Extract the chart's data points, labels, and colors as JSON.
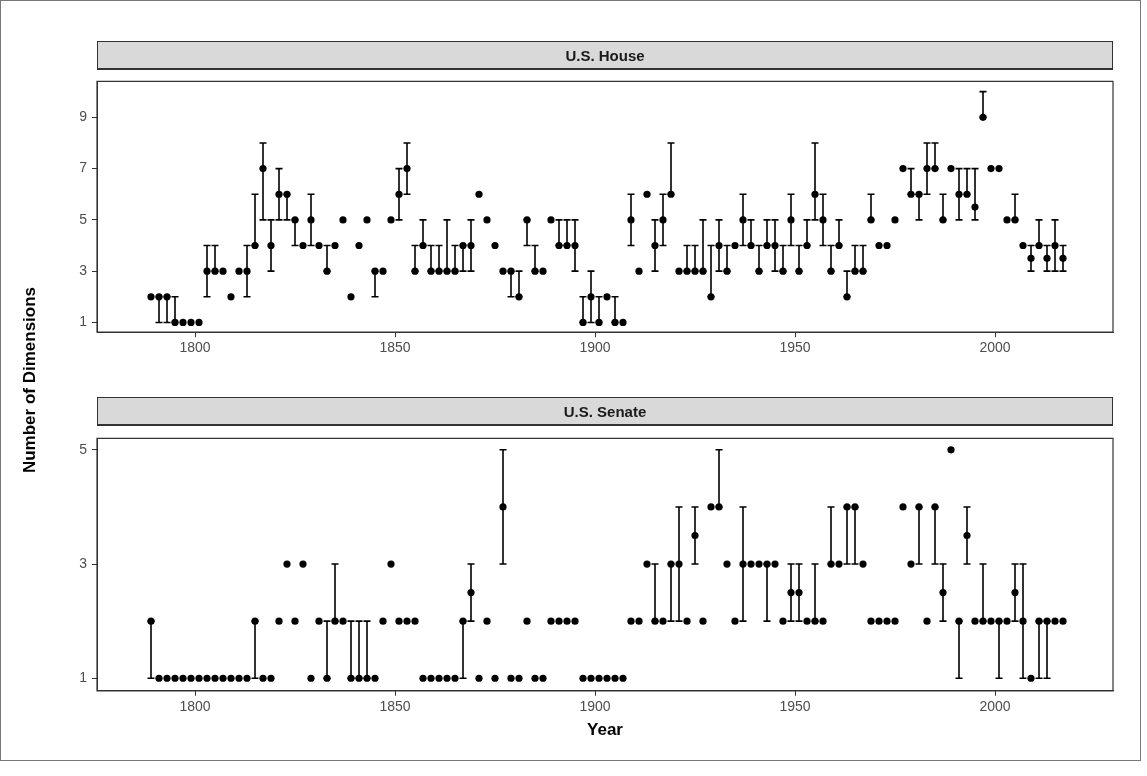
{
  "chart_data": [
    {
      "type": "scatter",
      "title": "U.S. House",
      "ylabel": "Number of Dimensions",
      "marker": "circle",
      "color": "#000000",
      "x": [
        1789,
        1791,
        1793,
        1795,
        1797,
        1799,
        1801,
        1803,
        1805,
        1807,
        1809,
        1811,
        1813,
        1815,
        1817,
        1819,
        1821,
        1823,
        1825,
        1827,
        1829,
        1831,
        1833,
        1835,
        1837,
        1839,
        1841,
        1843,
        1845,
        1847,
        1849,
        1851,
        1853,
        1855,
        1857,
        1859,
        1861,
        1863,
        1865,
        1867,
        1869,
        1871,
        1873,
        1875,
        1877,
        1879,
        1881,
        1883,
        1885,
        1887,
        1889,
        1891,
        1893,
        1895,
        1897,
        1899,
        1901,
        1903,
        1905,
        1907,
        1909,
        1911,
        1913,
        1915,
        1917,
        1919,
        1921,
        1923,
        1925,
        1927,
        1929,
        1931,
        1933,
        1935,
        1937,
        1939,
        1941,
        1943,
        1945,
        1947,
        1949,
        1951,
        1953,
        1955,
        1957,
        1959,
        1961,
        1963,
        1965,
        1967,
        1969,
        1971,
        1973,
        1975,
        1977,
        1979,
        1981,
        1983,
        1985,
        1987,
        1989,
        1991,
        1993,
        1995,
        1997,
        1999,
        2001,
        2003,
        2005,
        2007,
        2009,
        2011,
        2013,
        2015,
        2017
      ],
      "values": [
        2,
        2,
        2,
        1,
        1,
        1,
        1,
        3,
        3,
        3,
        2,
        3,
        3,
        4,
        7,
        4,
        6,
        6,
        5,
        4,
        5,
        4,
        3,
        4,
        5,
        2,
        4,
        5,
        3,
        3,
        5,
        6,
        7,
        3,
        4,
        3,
        3,
        3,
        3,
        4,
        4,
        6,
        5,
        4,
        3,
        3,
        2,
        5,
        3,
        3,
        5,
        4,
        4,
        4,
        1,
        2,
        1,
        2,
        1,
        1,
        5,
        3,
        6,
        4,
        5,
        6,
        3,
        3,
        3,
        3,
        2,
        4,
        3,
        4,
        5,
        4,
        3,
        4,
        4,
        3,
        5,
        3,
        4,
        6,
        5,
        3,
        4,
        2,
        3,
        3,
        5,
        4,
        4,
        5,
        7,
        6,
        6,
        7,
        7,
        5,
        7,
        6,
        6,
        5.5,
        9,
        7,
        7,
        5,
        5,
        4,
        3.5,
        4,
        3.5,
        4,
        3.5
      ],
      "errors": [
        null,
        [
          1,
          2
        ],
        [
          1,
          2
        ],
        [
          1,
          2
        ],
        null,
        null,
        null,
        [
          2,
          4
        ],
        [
          3,
          4
        ],
        null,
        null,
        null,
        [
          2,
          4
        ],
        [
          4,
          6
        ],
        [
          5,
          8
        ],
        [
          3,
          5
        ],
        [
          5,
          7
        ],
        [
          5,
          6
        ],
        [
          4,
          5
        ],
        null,
        [
          4,
          6
        ],
        null,
        [
          3,
          4
        ],
        null,
        null,
        null,
        null,
        null,
        [
          2,
          3
        ],
        null,
        null,
        [
          5,
          7
        ],
        [
          6,
          8
        ],
        [
          3,
          4
        ],
        [
          4,
          5
        ],
        [
          3,
          4
        ],
        [
          3,
          4
        ],
        [
          3,
          5
        ],
        [
          3,
          4
        ],
        [
          3,
          4
        ],
        [
          3,
          5
        ],
        null,
        null,
        null,
        null,
        [
          2,
          3
        ],
        [
          2,
          3
        ],
        [
          4,
          5
        ],
        [
          3,
          4
        ],
        null,
        null,
        [
          4,
          5
        ],
        [
          4,
          5
        ],
        [
          3,
          5
        ],
        [
          1,
          2
        ],
        [
          1,
          3
        ],
        [
          1,
          2
        ],
        null,
        [
          1,
          2
        ],
        null,
        [
          4,
          6
        ],
        null,
        null,
        [
          3,
          5
        ],
        [
          4,
          6
        ],
        [
          6,
          8
        ],
        null,
        [
          3,
          4
        ],
        [
          3,
          4
        ],
        [
          3,
          5
        ],
        [
          2,
          4
        ],
        [
          3,
          5
        ],
        [
          3,
          4
        ],
        null,
        [
          4,
          6
        ],
        [
          4,
          5
        ],
        [
          3,
          4
        ],
        [
          4,
          5
        ],
        [
          3,
          5
        ],
        [
          3,
          4
        ],
        [
          4,
          6
        ],
        [
          3,
          4
        ],
        [
          4,
          5
        ],
        [
          5,
          8
        ],
        [
          4,
          6
        ],
        [
          3,
          4
        ],
        [
          4,
          5
        ],
        [
          2,
          3
        ],
        [
          3,
          4
        ],
        [
          3,
          4
        ],
        [
          5,
          6
        ],
        null,
        null,
        null,
        null,
        [
          6,
          7
        ],
        [
          5,
          6
        ],
        [
          6,
          8
        ],
        [
          7,
          8
        ],
        [
          5,
          6
        ],
        null,
        [
          5,
          7
        ],
        [
          6,
          7
        ],
        [
          5,
          7
        ],
        [
          9,
          10
        ],
        null,
        null,
        null,
        [
          5,
          6
        ],
        null,
        [
          3,
          4
        ],
        [
          4,
          5
        ],
        [
          3,
          4
        ],
        [
          3,
          5
        ],
        [
          3,
          4
        ]
      ],
      "xlim": [
        1775.5,
        2029.5
      ],
      "xticks": [
        1800,
        1850,
        1900,
        1950,
        2000
      ],
      "ylim": [
        0.62,
        10.4
      ],
      "yticks": [
        1,
        3,
        5,
        7,
        9
      ]
    },
    {
      "type": "scatter",
      "title": "U.S. Senate",
      "xlabel": "Year",
      "marker": "circle",
      "color": "#000000",
      "x": [
        1789,
        1791,
        1793,
        1795,
        1797,
        1799,
        1801,
        1803,
        1805,
        1807,
        1809,
        1811,
        1813,
        1815,
        1817,
        1819,
        1821,
        1823,
        1825,
        1827,
        1829,
        1831,
        1833,
        1835,
        1837,
        1839,
        1841,
        1843,
        1845,
        1847,
        1849,
        1851,
        1853,
        1855,
        1857,
        1859,
        1861,
        1863,
        1865,
        1867,
        1869,
        1871,
        1873,
        1875,
        1877,
        1879,
        1881,
        1883,
        1885,
        1887,
        1889,
        1891,
        1893,
        1895,
        1897,
        1899,
        1901,
        1903,
        1905,
        1907,
        1909,
        1911,
        1913,
        1915,
        1917,
        1919,
        1921,
        1923,
        1925,
        1927,
        1929,
        1931,
        1933,
        1935,
        1937,
        1939,
        1941,
        1943,
        1945,
        1947,
        1949,
        1951,
        1953,
        1955,
        1957,
        1959,
        1961,
        1963,
        1965,
        1967,
        1969,
        1971,
        1973,
        1975,
        1977,
        1979,
        1981,
        1983,
        1985,
        1987,
        1989,
        1991,
        1993,
        1995,
        1997,
        1999,
        2001,
        2003,
        2005,
        2007,
        2009,
        2011,
        2013,
        2015,
        2017
      ],
      "values": [
        2,
        1,
        1,
        1,
        1,
        1,
        1,
        1,
        1,
        1,
        1,
        1,
        1,
        2,
        1,
        1,
        2,
        3,
        2,
        3,
        1,
        2,
        1,
        2,
        2,
        1,
        1,
        1,
        1,
        2,
        3,
        2,
        2,
        2,
        1,
        1,
        1,
        1,
        1,
        2,
        2.5,
        1,
        2,
        1,
        4,
        1,
        1,
        2,
        1,
        1,
        2,
        2,
        2,
        2,
        1,
        1,
        1,
        1,
        1,
        1,
        2,
        2,
        3,
        2,
        2,
        3,
        3,
        2,
        3.5,
        2,
        4,
        4,
        3,
        2,
        3,
        3,
        3,
        3,
        3,
        2,
        2.5,
        2.5,
        2,
        2,
        2,
        3,
        3,
        4,
        4,
        3,
        2,
        2,
        2,
        2,
        4,
        3,
        4,
        2,
        4,
        2.5,
        5,
        2,
        3.5,
        2,
        2,
        2,
        2,
        2,
        2.5,
        2,
        1,
        2,
        2,
        2,
        2
      ],
      "errors": [
        [
          1,
          2
        ],
        null,
        null,
        null,
        null,
        null,
        null,
        null,
        null,
        null,
        null,
        null,
        null,
        [
          1,
          2
        ],
        null,
        null,
        null,
        null,
        null,
        null,
        null,
        null,
        [
          1,
          2
        ],
        [
          2,
          3
        ],
        null,
        [
          1,
          2
        ],
        [
          1,
          2
        ],
        [
          1,
          2
        ],
        null,
        null,
        null,
        null,
        null,
        null,
        null,
        null,
        null,
        null,
        null,
        [
          1,
          2
        ],
        [
          2,
          3
        ],
        null,
        null,
        null,
        [
          3,
          5
        ],
        null,
        null,
        null,
        null,
        null,
        null,
        null,
        null,
        null,
        null,
        null,
        null,
        null,
        null,
        null,
        null,
        null,
        null,
        [
          2,
          3
        ],
        null,
        [
          2,
          3
        ],
        [
          2,
          4
        ],
        null,
        [
          3,
          4
        ],
        null,
        null,
        [
          4,
          5
        ],
        null,
        null,
        [
          2,
          4
        ],
        null,
        null,
        [
          2,
          3
        ],
        null,
        null,
        [
          2,
          3
        ],
        [
          2,
          3
        ],
        null,
        [
          2,
          3
        ],
        null,
        [
          3,
          4
        ],
        null,
        [
          3,
          4
        ],
        [
          3,
          4
        ],
        null,
        null,
        null,
        null,
        null,
        null,
        null,
        [
          3,
          4
        ],
        null,
        [
          3,
          4
        ],
        [
          2,
          3
        ],
        null,
        [
          1,
          2
        ],
        [
          3,
          4
        ],
        null,
        [
          2,
          3
        ],
        null,
        [
          1,
          2
        ],
        null,
        [
          2,
          3
        ],
        [
          1,
          3
        ],
        null,
        [
          1,
          2
        ],
        [
          1,
          2
        ],
        null,
        null
      ],
      "xlim": [
        1775.5,
        2029.5
      ],
      "xticks": [
        1800,
        1850,
        1900,
        1950,
        2000
      ],
      "ylim": [
        0.78,
        5.2
      ],
      "yticks": [
        1,
        3,
        5
      ]
    }
  ]
}
